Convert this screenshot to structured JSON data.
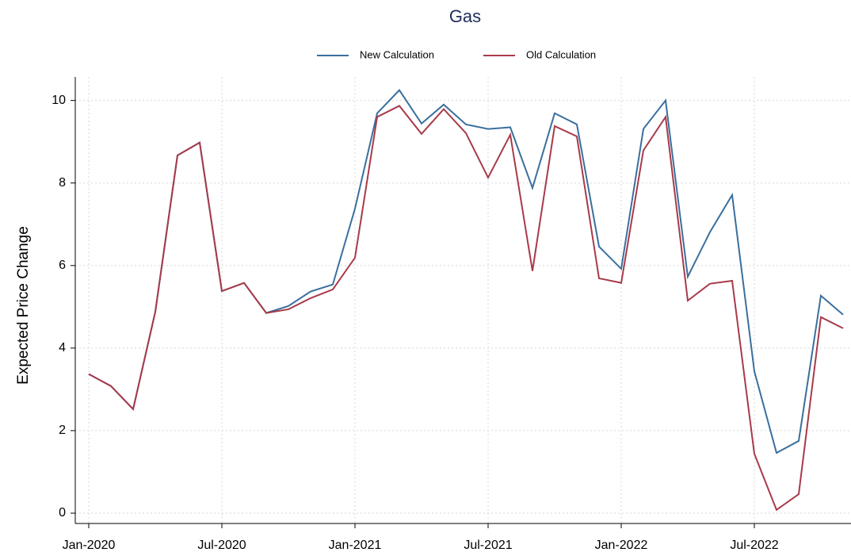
{
  "chart_data": {
    "type": "line",
    "title": "Gas",
    "y_label": "Expected Price Change",
    "categories": [
      "Jan-2020",
      null,
      null,
      null,
      null,
      null,
      "Jul-2020",
      null,
      null,
      null,
      null,
      null,
      "Jan-2021",
      null,
      null,
      null,
      null,
      null,
      "Jul-2021",
      null,
      null,
      null,
      null,
      null,
      "Jan-2022",
      null,
      null,
      null,
      null,
      null,
      "Jul-2022",
      null,
      null,
      null,
      null
    ],
    "series": [
      {
        "name": "New Calculation",
        "color": "#3a6f9e",
        "values": [
          3.37,
          3.08,
          2.52,
          4.88,
          8.67,
          8.98,
          5.38,
          5.58,
          4.85,
          5.02,
          5.37,
          5.54,
          7.38,
          9.69,
          10.25,
          9.44,
          9.9,
          9.42,
          9.31,
          9.35,
          7.88,
          9.69,
          9.42,
          6.46,
          5.92,
          9.31,
          10.0,
          5.73,
          6.81,
          7.71,
          3.44,
          1.46,
          1.75,
          5.27,
          4.81
        ]
      },
      {
        "name": "Old Calculation",
        "color": "#a83a4a",
        "values": [
          3.37,
          3.08,
          2.52,
          4.88,
          8.67,
          8.98,
          5.38,
          5.58,
          4.85,
          4.94,
          5.21,
          5.42,
          6.19,
          9.6,
          9.87,
          9.19,
          9.79,
          9.21,
          8.13,
          9.17,
          5.87,
          9.38,
          9.13,
          5.69,
          5.58,
          8.79,
          9.6,
          5.15,
          5.56,
          5.63,
          1.44,
          0.08,
          0.46,
          4.75,
          4.48
        ]
      }
    ],
    "ylim": [
      -0.25,
      10.57
    ],
    "yticks": [
      0,
      2,
      4,
      6,
      8,
      10
    ],
    "grid": true,
    "legend": "top"
  }
}
